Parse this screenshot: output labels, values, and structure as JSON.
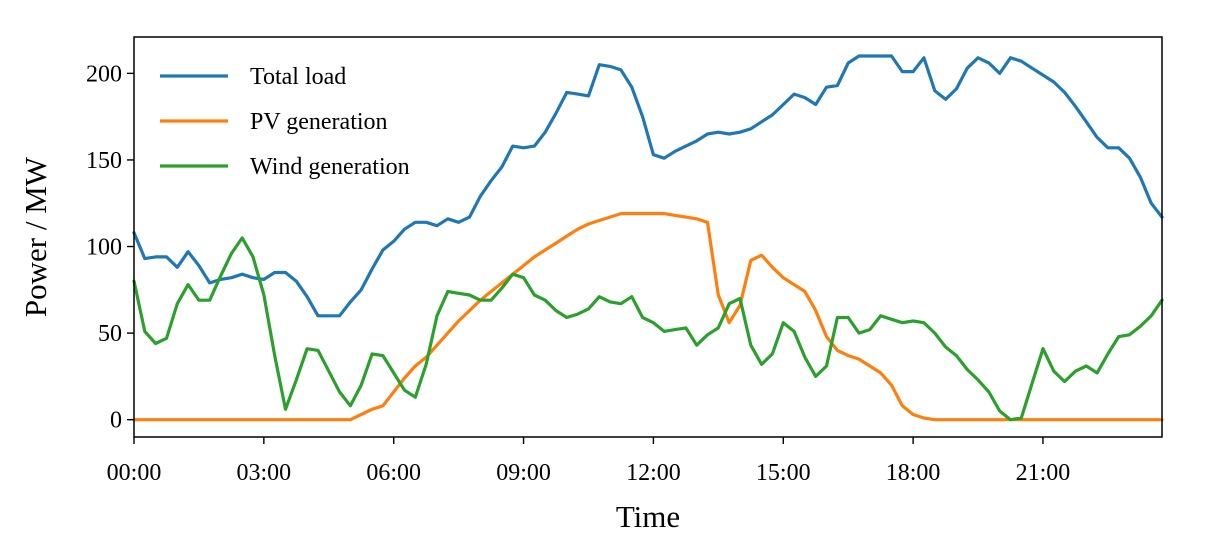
{
  "chart_data": {
    "type": "line",
    "title": "",
    "xlabel": "Time",
    "ylabel": "Power / MW",
    "xlim": [
      0,
      23.75
    ],
    "ylim": [
      -10,
      221
    ],
    "x_step_hours": 0.25,
    "x_ticks": [
      0,
      3,
      6,
      9,
      12,
      15,
      18,
      21
    ],
    "x_tick_labels": [
      "00:00",
      "03:00",
      "06:00",
      "09:00",
      "12:00",
      "15:00",
      "18:00",
      "21:00"
    ],
    "y_ticks": [
      0,
      50,
      100,
      150,
      200
    ],
    "y_tick_labels": [
      "0",
      "50",
      "100",
      "150",
      "200"
    ],
    "grid": false,
    "legend_position": "top-left",
    "series": [
      {
        "name": "Total load",
        "color": "#1f77b4",
        "values": [
          108,
          93,
          94,
          94,
          88,
          97,
          89,
          79,
          81,
          82,
          84,
          82,
          81,
          85,
          85,
          80,
          71,
          60,
          60,
          60,
          68,
          75,
          87,
          98,
          103,
          110,
          114,
          114,
          112,
          116,
          114,
          117,
          129,
          138,
          146,
          158,
          157,
          158,
          166,
          177,
          189,
          188,
          187,
          205,
          204,
          202,
          192,
          175,
          153,
          151,
          155,
          158,
          161,
          165,
          166,
          165,
          166,
          168,
          172,
          176,
          182,
          188,
          186,
          182,
          192,
          193,
          206,
          210,
          210,
          210,
          210,
          201,
          201,
          209,
          190,
          185,
          191,
          203,
          209,
          206,
          200,
          209,
          207,
          203,
          199,
          195,
          189,
          181,
          172,
          163,
          157,
          157,
          151,
          140,
          125,
          117
        ]
      },
      {
        "name": "PV generation",
        "color": "#ff7f0e",
        "values": [
          0,
          0,
          0,
          0,
          0,
          0,
          0,
          0,
          0,
          0,
          0,
          0,
          0,
          0,
          0,
          0,
          0,
          0,
          0,
          0,
          0,
          3,
          6,
          8,
          16,
          24,
          31,
          36,
          43,
          50,
          57,
          63,
          69,
          74,
          79,
          84,
          89,
          94,
          98,
          102,
          106,
          110,
          113,
          115,
          117,
          119,
          119,
          119,
          119,
          119,
          118,
          117,
          116,
          114,
          72,
          56,
          66,
          92,
          95,
          88,
          82,
          78,
          74,
          63,
          48,
          40,
          37,
          35,
          31,
          27,
          20,
          8,
          3,
          1,
          0,
          0,
          0,
          0,
          0,
          0,
          0,
          0,
          0,
          0,
          0,
          0,
          0,
          0,
          0,
          0,
          0,
          0,
          0,
          0,
          0,
          0
        ]
      },
      {
        "name": "Wind generation",
        "color": "#2ca02c",
        "values": [
          80,
          51,
          44,
          47,
          67,
          78,
          69,
          69,
          83,
          96,
          105,
          94,
          72,
          37,
          6,
          23,
          41,
          40,
          28,
          16,
          8,
          20,
          38,
          37,
          27,
          17,
          13,
          32,
          60,
          74,
          73,
          72,
          69,
          69,
          76,
          84,
          82,
          72,
          69,
          63,
          59,
          61,
          64,
          71,
          68,
          67,
          71,
          59,
          56,
          51,
          52,
          53,
          43,
          49,
          53,
          67,
          70,
          43,
          32,
          38,
          56,
          51,
          36,
          25,
          31,
          59,
          59,
          50,
          52,
          60,
          58,
          56,
          57,
          56,
          50,
          42,
          37,
          29,
          23,
          16,
          5,
          0,
          1,
          21,
          41,
          28,
          22,
          28,
          31,
          27,
          38,
          48,
          49,
          54,
          60,
          69
        ]
      }
    ]
  }
}
